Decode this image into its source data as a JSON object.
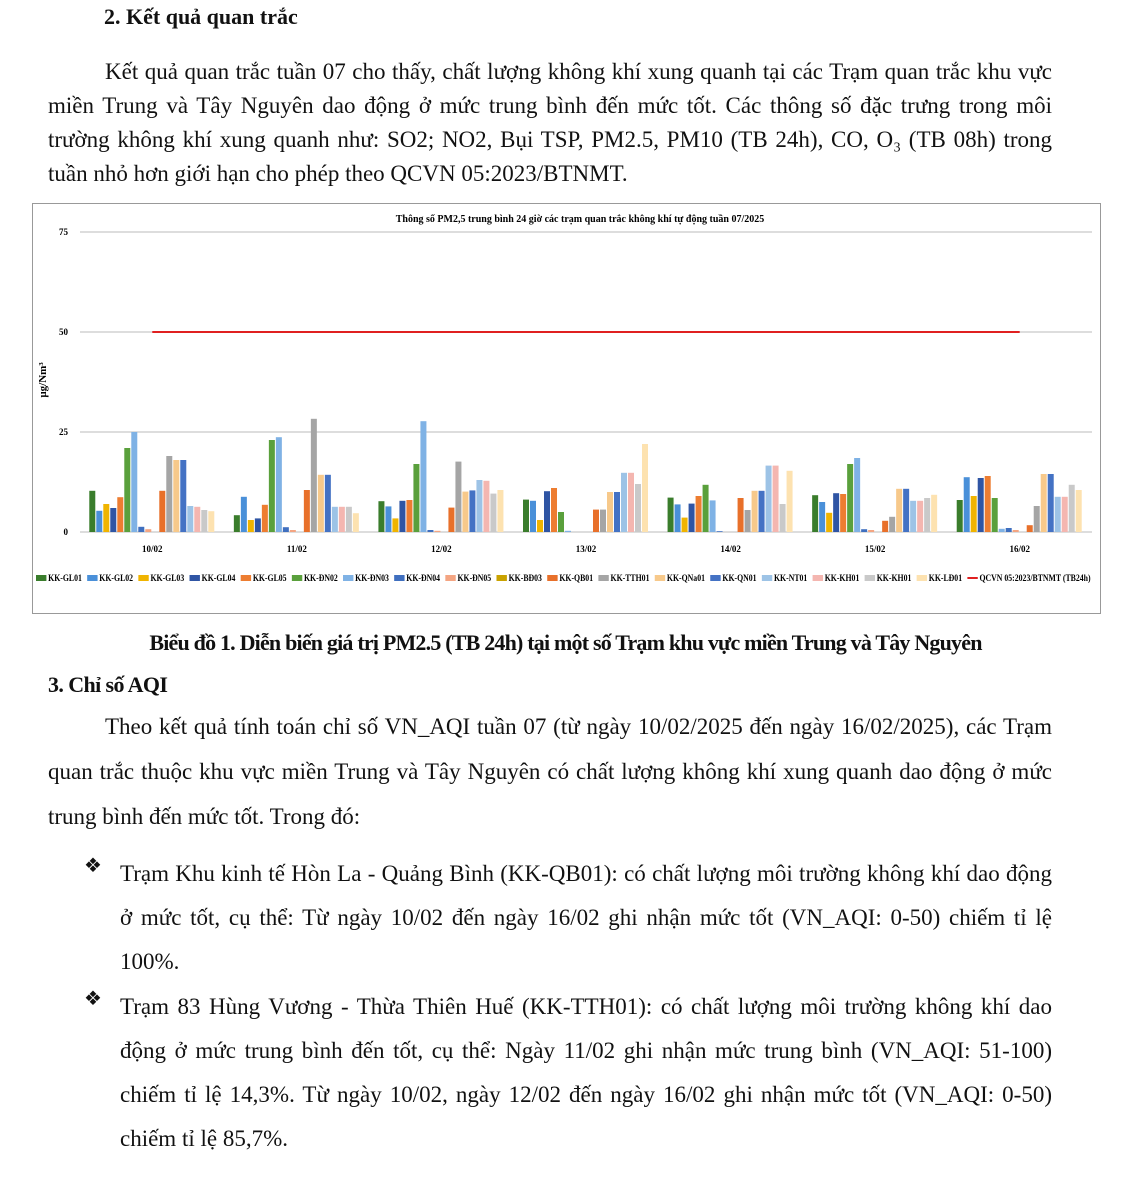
{
  "section_2": {
    "heading": "2. Kết quả quan trắc",
    "paragraph": "Kết quả quan trắc tuần 07 cho thấy, chất lượng không khí xung quanh tại các Trạm quan trắc khu vực miền Trung và Tây Nguyên dao động ở mức trung bình đến mức tốt. Các thông số đặc trưng trong môi trường không khí xung quanh như: SO2; NO2, Bụi TSP, PM2.5, PM10 (TB 24h), CO, O₃ (TB 08h) trong tuần nhỏ hơn giới hạn cho phép theo QCVN 05:2023/BTNMT."
  },
  "chart_data": {
    "type": "bar",
    "title": "Thông số PM2,5 trung bình 24 giờ các trạm quan trắc không khí tự động tuần 07/2025",
    "y_label": "µg/Nm³",
    "categories": [
      "10/02",
      "11/02",
      "12/02",
      "13/02",
      "14/02",
      "15/02",
      "16/02"
    ],
    "ylim": [
      0,
      75
    ],
    "yticks": [
      0,
      25,
      50,
      75
    ],
    "grid": true,
    "legend": "bottom",
    "series": [
      {
        "name": "KK-GL01",
        "color": "#3a7d2c",
        "values": [
          10.3,
          4.2,
          7.7,
          8.1,
          8.6,
          9.2,
          8
        ]
      },
      {
        "name": "KK-GL02",
        "color": "#4a90d9",
        "values": [
          5.3,
          8.8,
          6.4,
          7.8,
          6.9,
          7.5,
          13.7
        ]
      },
      {
        "name": "KK-GL03",
        "color": "#f0b400",
        "values": [
          7,
          3,
          3.4,
          3,
          3.6,
          4.8,
          9
        ]
      },
      {
        "name": "KK-GL04",
        "color": "#2f55a4",
        "values": [
          6,
          3.4,
          7.8,
          10.2,
          7.1,
          9.7,
          13.5
        ]
      },
      {
        "name": "KK-GL05",
        "color": "#ed7d31",
        "values": [
          8.7,
          6.8,
          8,
          11,
          9,
          9.5,
          14
        ]
      },
      {
        "name": "KK-ĐN02",
        "color": "#5aa03c",
        "values": [
          21,
          23,
          17,
          5,
          11.8,
          17,
          8.5
        ]
      },
      {
        "name": "KK-ĐN03",
        "color": "#7fb2e5",
        "values": [
          25,
          23.7,
          27.7,
          0.3,
          7.9,
          18.5,
          0.8
        ]
      },
      {
        "name": "KK-ĐN04",
        "color": "#3f6fbf",
        "values": [
          1.3,
          1.2,
          0.5,
          0,
          0.2,
          0.7,
          1
        ]
      },
      {
        "name": "KK-ĐN05",
        "color": "#f4a582",
        "values": [
          0.7,
          0.5,
          0.3,
          0,
          0,
          0.5,
          0.5
        ]
      },
      {
        "name": "KK-BĐ03",
        "color": "#c9a200",
        "values": [
          0,
          0,
          0,
          0,
          0,
          0,
          0
        ]
      },
      {
        "name": "KK-QB01",
        "color": "#e8702a",
        "values": [
          10.3,
          10.5,
          6.1,
          5.6,
          8.5,
          2.8,
          1.7
        ]
      },
      {
        "name": "KK-TTH01",
        "color": "#a5a5a5",
        "values": [
          19,
          28.3,
          17.6,
          5.6,
          5.5,
          3.8,
          6.5
        ]
      },
      {
        "name": "KK-QNa01",
        "color": "#f7c98b",
        "values": [
          18,
          14.3,
          10.1,
          10,
          10.3,
          10.8,
          14.5
        ]
      },
      {
        "name": "KK-QN01",
        "color": "#4472c4",
        "values": [
          18,
          14.3,
          10.4,
          10,
          10.3,
          10.8,
          14.5
        ]
      },
      {
        "name": "KK-NT01",
        "color": "#9dc3e6",
        "values": [
          6.5,
          6.3,
          13,
          14.8,
          16.6,
          7.8,
          8.8
        ]
      },
      {
        "name": "KK-KH01",
        "color": "#f4b6b0",
        "values": [
          6.3,
          6.3,
          12.8,
          14.8,
          16.6,
          7.8,
          8.8
        ]
      },
      {
        "name": "KK-KH01",
        "color": "#c9c9c9",
        "values": [
          5.5,
          6.3,
          9.6,
          12,
          7,
          8.5,
          11.8
        ]
      },
      {
        "name": "KK-LĐ01",
        "color": "#fde2b0",
        "values": [
          5.2,
          4.7,
          10.5,
          22,
          15.3,
          9.3,
          10.5
        ]
      },
      {
        "name": "QCVN 05:2023/BTNMT (TB24h)",
        "color": "#e02020",
        "type": "line",
        "values": [
          50,
          50,
          50,
          50,
          50,
          50,
          50
        ]
      }
    ]
  },
  "caption": "Biểu đồ 1. Diễn biến giá trị PM2.5 (TB 24h) tại một số Trạm khu vực miền Trung và Tây Nguyên",
  "section_3": {
    "heading": "3. Chỉ số AQI",
    "paragraph": "Theo kết quả tính toán chỉ số VN_AQI tuần 07 (từ ngày 10/02/2025 đến ngày 16/02/2025), các Trạm quan trắc thuộc khu vực miền Trung và Tây Nguyên có chất lượng không khí xung quanh dao động ở mức trung bình đến mức tốt. Trong đó:",
    "bullets": [
      "Trạm Khu kinh tế Hòn La - Quảng Bình (KK-QB01): có chất lượng môi trường không khí dao động ở mức tốt, cụ thể: Từ ngày 10/02 đến ngày 16/02 ghi nhận mức tốt (VN_AQI: 0-50) chiếm tỉ lệ 100%.",
      "Trạm 83 Hùng Vương - Thừa Thiên Huế (KK-TTH01): có chất lượng môi trường không khí dao động ở mức trung bình đến tốt, cụ thể: Ngày 11/02 ghi nhận mức trung bình (VN_AQI: 51-100) chiếm tỉ lệ 14,3%. Từ ngày 10/02, ngày 12/02 đến ngày 16/02 ghi nhận mức tốt (VN_AQI: 0-50) chiếm tỉ lệ 85,7%."
    ]
  }
}
